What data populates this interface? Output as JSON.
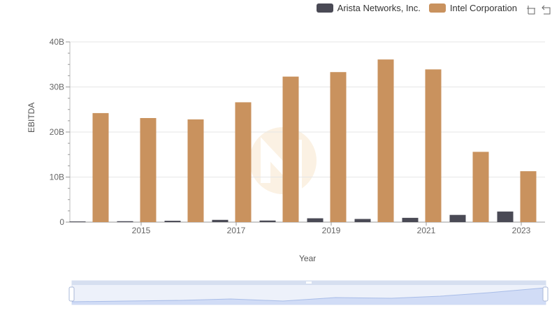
{
  "legend": {
    "items": [
      {
        "label": "Arista Networks, Inc.",
        "color": "#4a4a55"
      },
      {
        "label": "Intel Corporation",
        "color": "#c9925e"
      }
    ]
  },
  "toolbox": {
    "icons": [
      "zoom-icon",
      "reset-icon"
    ]
  },
  "chart_data": {
    "type": "bar",
    "x": [
      2014,
      2015,
      2016,
      2017,
      2018,
      2019,
      2020,
      2021,
      2022,
      2023
    ],
    "tick_labels": [
      "2015",
      "2017",
      "2019",
      "2021",
      "2023"
    ],
    "y_ticks": [
      "0",
      "10B",
      "20B",
      "30B",
      "40B"
    ],
    "xlabel": "Year",
    "ylabel": "EBITDA",
    "ylim": [
      0,
      40
    ],
    "y_unit": "B",
    "series": [
      {
        "name": "Arista Networks, Inc.",
        "color": "#4a4a55",
        "values": [
          0.15,
          0.2,
          0.3,
          0.5,
          0.35,
          0.85,
          0.7,
          0.95,
          1.6,
          2.35
        ]
      },
      {
        "name": "Intel Corporation",
        "color": "#c9925e",
        "values": [
          24.2,
          23.1,
          22.8,
          26.6,
          32.3,
          33.3,
          36.1,
          33.9,
          15.6,
          11.3
        ]
      }
    ],
    "grid": true,
    "legend_position": "top-right"
  }
}
